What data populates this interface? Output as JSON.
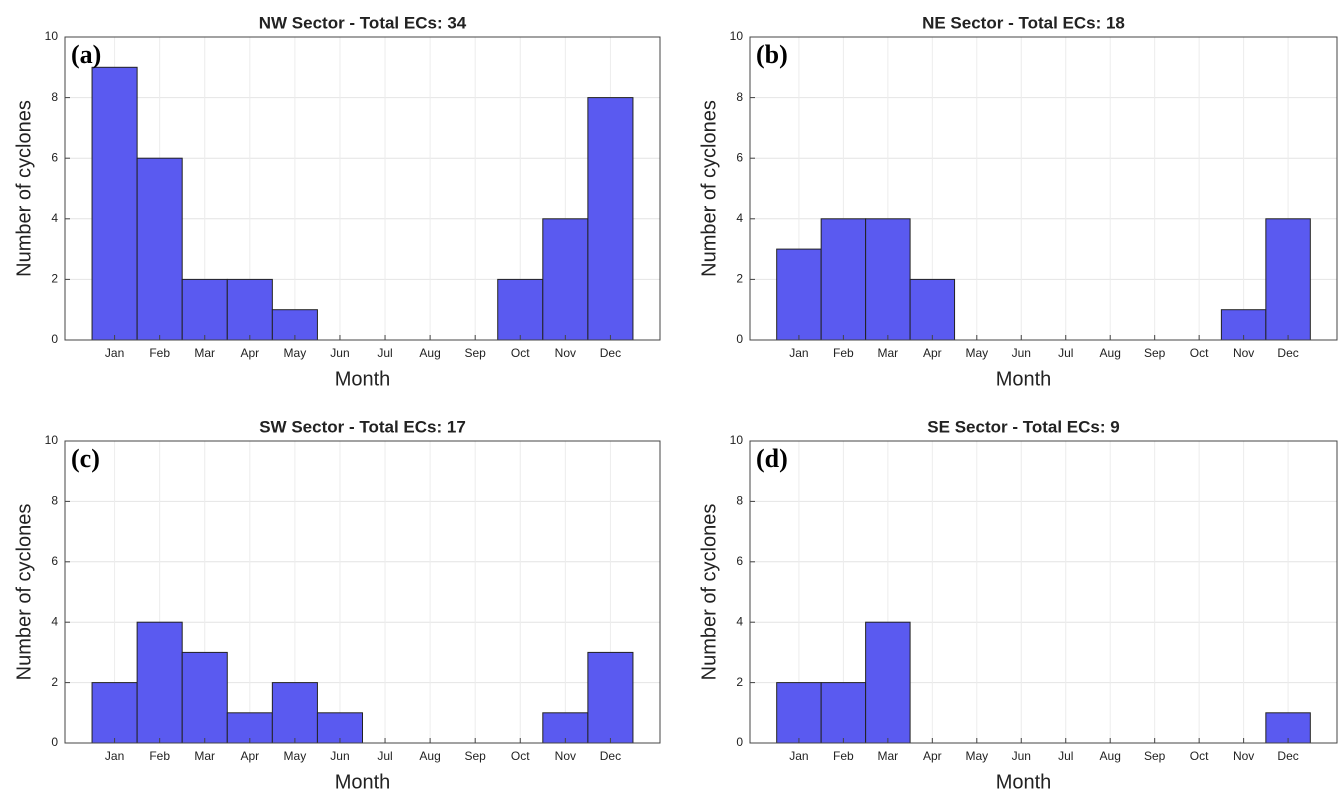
{
  "chart_data": [
    {
      "type": "bar",
      "title": "NW Sector - Total ECs: 34",
      "panel_label": "(a)",
      "xlabel": "Month",
      "ylabel": "Number of cyclones",
      "categories": [
        "Jan",
        "Feb",
        "Mar",
        "Apr",
        "May",
        "Jun",
        "Jul",
        "Aug",
        "Sep",
        "Oct",
        "Nov",
        "Dec"
      ],
      "values": [
        9,
        6,
        2,
        2,
        1,
        0,
        0,
        0,
        0,
        2,
        4,
        8
      ],
      "color": "#5a5af0",
      "ylim": [
        0,
        10
      ],
      "yticks": [
        0,
        2,
        4,
        6,
        8,
        10
      ],
      "grid": true
    },
    {
      "type": "bar",
      "title": "NE Sector - Total ECs: 18",
      "panel_label": "(b)",
      "xlabel": "Month",
      "ylabel": "Number of cyclones",
      "categories": [
        "Jan",
        "Feb",
        "Mar",
        "Apr",
        "May",
        "Jun",
        "Jul",
        "Aug",
        "Sep",
        "Oct",
        "Nov",
        "Dec"
      ],
      "values": [
        3,
        4,
        4,
        2,
        0,
        0,
        0,
        0,
        0,
        0,
        1,
        4
      ],
      "color": "#5a5af0",
      "ylim": [
        0,
        10
      ],
      "yticks": [
        0,
        2,
        4,
        6,
        8,
        10
      ],
      "grid": true
    },
    {
      "type": "bar",
      "title": "SW Sector - Total ECs: 17",
      "panel_label": "(c)",
      "xlabel": "Month",
      "ylabel": "Number of cyclones",
      "categories": [
        "Jan",
        "Feb",
        "Mar",
        "Apr",
        "May",
        "Jun",
        "Jul",
        "Aug",
        "Sep",
        "Oct",
        "Nov",
        "Dec"
      ],
      "values": [
        2,
        4,
        3,
        1,
        2,
        1,
        0,
        0,
        0,
        0,
        1,
        3
      ],
      "color": "#5a5af0",
      "ylim": [
        0,
        10
      ],
      "yticks": [
        0,
        2,
        4,
        6,
        8,
        10
      ],
      "grid": true
    },
    {
      "type": "bar",
      "title": "SE Sector - Total ECs: 9",
      "panel_label": "(d)",
      "xlabel": "Month",
      "ylabel": "Number of cyclones",
      "categories": [
        "Jan",
        "Feb",
        "Mar",
        "Apr",
        "May",
        "Jun",
        "Jul",
        "Aug",
        "Sep",
        "Oct",
        "Nov",
        "Dec"
      ],
      "values": [
        2,
        2,
        4,
        0,
        0,
        0,
        0,
        0,
        0,
        0,
        0,
        1
      ],
      "color": "#5a5af0",
      "ylim": [
        0,
        10
      ],
      "yticks": [
        0,
        2,
        4,
        6,
        8,
        10
      ],
      "grid": true
    }
  ]
}
